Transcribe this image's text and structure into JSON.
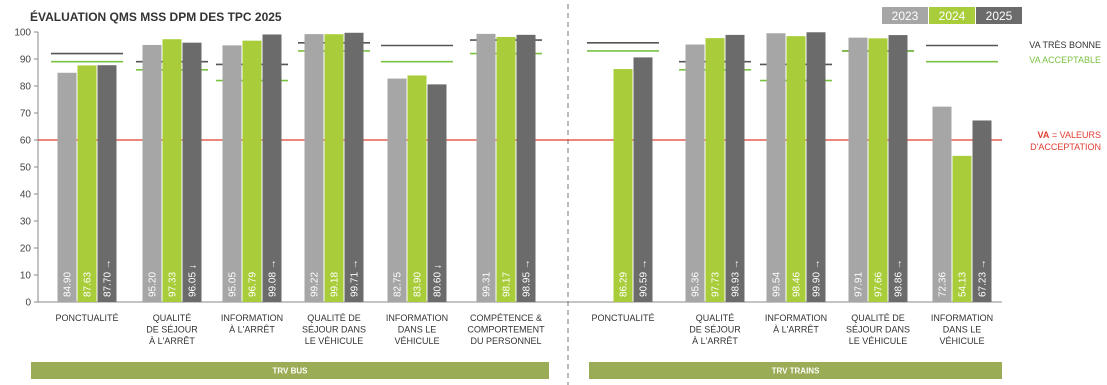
{
  "chart_data": {
    "type": "bar",
    "title": "ÉVALUATION QMS MSS DPM DES TPC 2025",
    "ylim": [
      0,
      100
    ],
    "yticks": [
      0,
      10,
      20,
      30,
      40,
      50,
      60,
      70,
      80,
      90,
      100
    ],
    "series": [
      {
        "name": "2023",
        "color": "#a6a6a6"
      },
      {
        "name": "2024",
        "color": "#a9cd3a"
      },
      {
        "name": "2025",
        "color": "#6b6b6b"
      }
    ],
    "groups": [
      {
        "name": "TRV BUS",
        "categories": [
          {
            "label": [
              "PONCTUALITÉ"
            ],
            "values": [
              84.9,
              87.63,
              87.7
            ],
            "labels": [
              "84.90",
              "87.63",
              "87.70 →"
            ],
            "va_tres_bonne": 92,
            "va_acceptable": 89
          },
          {
            "label": [
              "QUALITÉ",
              "DE SÉJOUR",
              "À L'ARRÊT"
            ],
            "values": [
              95.2,
              97.33,
              96.05
            ],
            "labels": [
              "95.20",
              "97.33",
              "96.05 ↓"
            ],
            "va_tres_bonne": 89,
            "va_acceptable": 86
          },
          {
            "label": [
              "INFORMATION",
              "À L'ARRÊT"
            ],
            "values": [
              95.05,
              96.79,
              99.08
            ],
            "labels": [
              "95.05",
              "96.79",
              "99.08 →"
            ],
            "va_tres_bonne": 88,
            "va_acceptable": 82
          },
          {
            "label": [
              "QUALITÉ DE",
              "SÉJOUR DANS",
              "LE VÉHICULE"
            ],
            "values": [
              99.22,
              99.18,
              99.71
            ],
            "labels": [
              "99.22",
              "99.18",
              "99.71 →"
            ],
            "va_tres_bonne": 96,
            "va_acceptable": 93
          },
          {
            "label": [
              "INFORMATION",
              "DANS LE",
              "VÉHICULE"
            ],
            "values": [
              82.75,
              83.9,
              80.6
            ],
            "labels": [
              "82.75",
              "83.90",
              "80.60 ↓"
            ],
            "va_tres_bonne": 95,
            "va_acceptable": 89
          },
          {
            "label": [
              "COMPÉTENCE &",
              "COMPORTEMENT",
              "DU PERSONNEL"
            ],
            "values": [
              99.31,
              98.17,
              98.95
            ],
            "labels": [
              "99.31",
              "98.17",
              "98.95 →"
            ],
            "va_tres_bonne": 97,
            "va_acceptable": 92
          }
        ]
      },
      {
        "name": "TRV TRAINS",
        "categories": [
          {
            "label": [
              "PONCTUALITÉ"
            ],
            "values": [
              null,
              86.29,
              90.59
            ],
            "labels": [
              "",
              "86.29",
              "90.59 →"
            ],
            "va_tres_bonne": 96,
            "va_acceptable": 93
          },
          {
            "label": [
              "QUALITÉ",
              "DE SÉJOUR",
              "À L'ARRÊT"
            ],
            "values": [
              95.36,
              97.73,
              98.93
            ],
            "labels": [
              "95.36",
              "97.73",
              "98.93 →"
            ],
            "va_tres_bonne": 89,
            "va_acceptable": 86
          },
          {
            "label": [
              "INFORMATION",
              "À L'ARRÊT"
            ],
            "values": [
              99.54,
              98.46,
              99.9
            ],
            "labels": [
              "99.54",
              "98.46",
              "99.90 →"
            ],
            "va_tres_bonne": 88,
            "va_acceptable": 82
          },
          {
            "label": [
              "QUALITÉ DE",
              "SÉJOUR DANS",
              "LE VÉHICULE"
            ],
            "values": [
              97.91,
              97.66,
              98.86
            ],
            "labels": [
              "97.91",
              "97.66",
              "98.86 →"
            ],
            "va_tres_bonne": 93,
            "va_acceptable": 93
          },
          {
            "label": [
              "INFORMATION",
              "DANS LE",
              "VÉHICULE"
            ],
            "values": [
              72.36,
              54.13,
              67.23
            ],
            "labels": [
              "72.36",
              "54.13",
              "67.23 →"
            ],
            "va_tres_bonne": 95,
            "va_acceptable": 89
          }
        ]
      }
    ],
    "reference_lines": {
      "va_tres_bonne": {
        "label": "VA TRÈS BONNE",
        "color": "#555555"
      },
      "va_acceptable": {
        "label": "VA ACCEPTABLE",
        "color": "#7cc242"
      },
      "va_acceptation": {
        "value": 60,
        "label_bold": "VA",
        "label_rest": " = VALEURS",
        "label_line2": "D'ACCEPTATION",
        "color": "#e03c31"
      }
    },
    "grid": false,
    "legend": "top-right",
    "group_bar_color": "#9aac55"
  }
}
